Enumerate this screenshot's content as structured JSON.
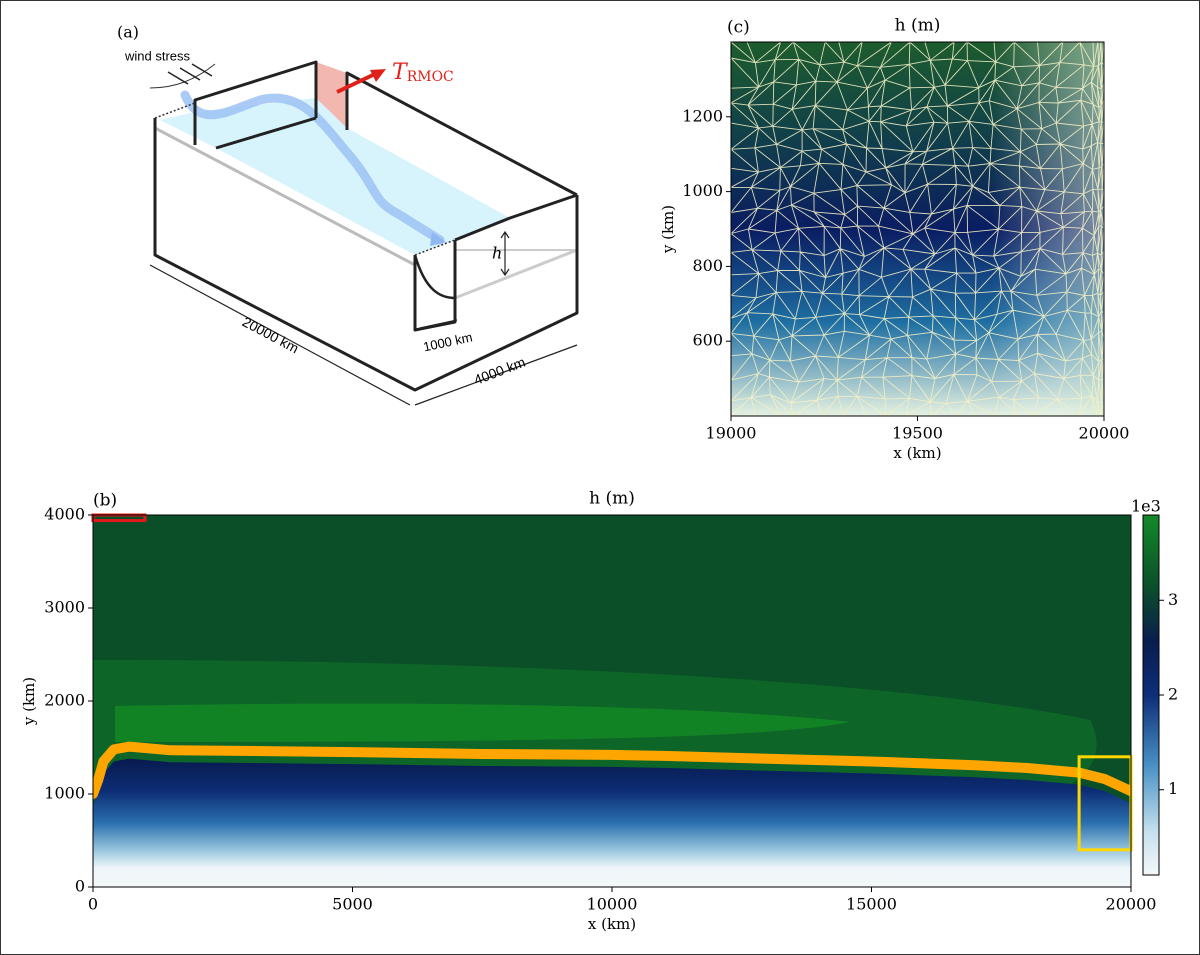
{
  "diagram": {
    "panel_label": "(a)",
    "wind_stress": "wind stress",
    "transport": {
      "symbol": "T",
      "subscript": "RMOC"
    },
    "depth_label": "h",
    "length_label": "20000 km",
    "width_label": "4000 km",
    "channel_label": "1000 km"
  },
  "chart_data": [
    {
      "type": "mesh",
      "panel_label": "(c)",
      "title": "h (m)",
      "x_label": "x (km)",
      "y_label": "y (km)",
      "xlim": [
        19000,
        20000
      ],
      "ylim": [
        400,
        1400
      ],
      "xticks": [
        19000,
        19500,
        20000
      ],
      "yticks": [
        600,
        800,
        1000,
        1200
      ]
    },
    {
      "type": "contour",
      "panel_label": "(b)",
      "title": "h (m)",
      "x_label": "x (km)",
      "y_label": "y (km)",
      "xlim": [
        0,
        20000
      ],
      "ylim": [
        0,
        4000
      ],
      "xticks": [
        0,
        5000,
        10000,
        15000,
        20000
      ],
      "yticks": [
        0,
        1000,
        2000,
        3000,
        4000
      ],
      "colorbar": {
        "lim": [
          0.1,
          3.9
        ],
        "ticks": [
          1,
          2,
          3
        ],
        "offset_label": "1e3"
      },
      "series": [
        {
          "color": "#ffa500",
          "x": [
            0,
            100,
            200,
            400,
            700,
            1500,
            3500,
            5000,
            7500,
            10000,
            11000,
            13000,
            15000,
            17000,
            18000,
            19000,
            19500,
            20000
          ],
          "values": [
            1000,
            1150,
            1350,
            1480,
            1510,
            1470,
            1460,
            1450,
            1430,
            1420,
            1410,
            1380,
            1350,
            1310,
            1280,
            1230,
            1160,
            1030
          ]
        }
      ],
      "boxes": [
        {
          "color": "#e31a1c",
          "x": [
            0,
            1000
          ],
          "y": [
            3940,
            4000
          ]
        },
        {
          "color": "#ffd700",
          "x": [
            19000,
            20000
          ],
          "y": [
            400,
            1400
          ]
        }
      ]
    }
  ]
}
